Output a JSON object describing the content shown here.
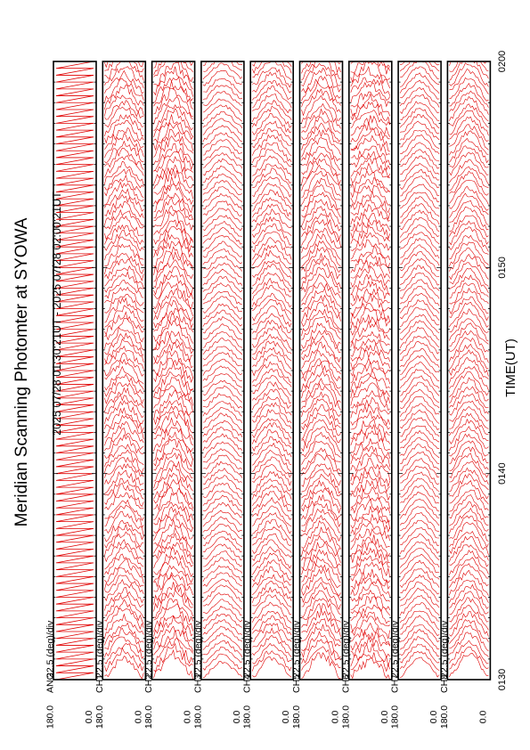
{
  "title": "Meridian Scanning Photomter at SYOWA",
  "subtitle": "2025 07/28 01:30:21UT - 2025 07/28 02:00:21UT",
  "xlabel": "TIME(UT)",
  "colors": {
    "trace": "#e00000",
    "frame": "#000000",
    "background": "#ffffff"
  },
  "chart_data": {
    "type": "line",
    "orientation": "rotated-90-counterclockwise",
    "title": "Meridian Scanning Photomter at SYOWA",
    "subtitle": "2025 07/28 01:30:21UT - 2025 07/28 02:00:21UT",
    "xlabel": "TIME(UT)",
    "x_ticks": [
      "0130",
      "0140",
      "0150",
      "0200"
    ],
    "x_minutes": [
      0,
      10,
      20,
      30
    ],
    "xlim_minutes": [
      0,
      30
    ],
    "scale_label": "22.5 (deg)/div",
    "y_tick_top": "180.0",
    "y_tick_bottom": "0.0",
    "ylim_deg": [
      0,
      180
    ],
    "grid": false,
    "panels": [
      {
        "name": "ANG",
        "scan_count": 90,
        "shape": "sawtooth"
      },
      {
        "name": "CH1",
        "scan_count": 90,
        "shape": "scan-profile"
      },
      {
        "name": "CH2",
        "scan_count": 90,
        "shape": "scan-profile"
      },
      {
        "name": "CH3",
        "scan_count": 90,
        "shape": "scan-profile"
      },
      {
        "name": "CH4",
        "scan_count": 90,
        "shape": "scan-profile"
      },
      {
        "name": "CH5",
        "scan_count": 90,
        "shape": "scan-profile"
      },
      {
        "name": "CH6",
        "scan_count": 90,
        "shape": "scan-profile"
      },
      {
        "name": "CH7",
        "scan_count": 90,
        "shape": "scan-profile"
      },
      {
        "name": "CH8",
        "scan_count": 90,
        "shape": "scan-profile"
      }
    ]
  }
}
